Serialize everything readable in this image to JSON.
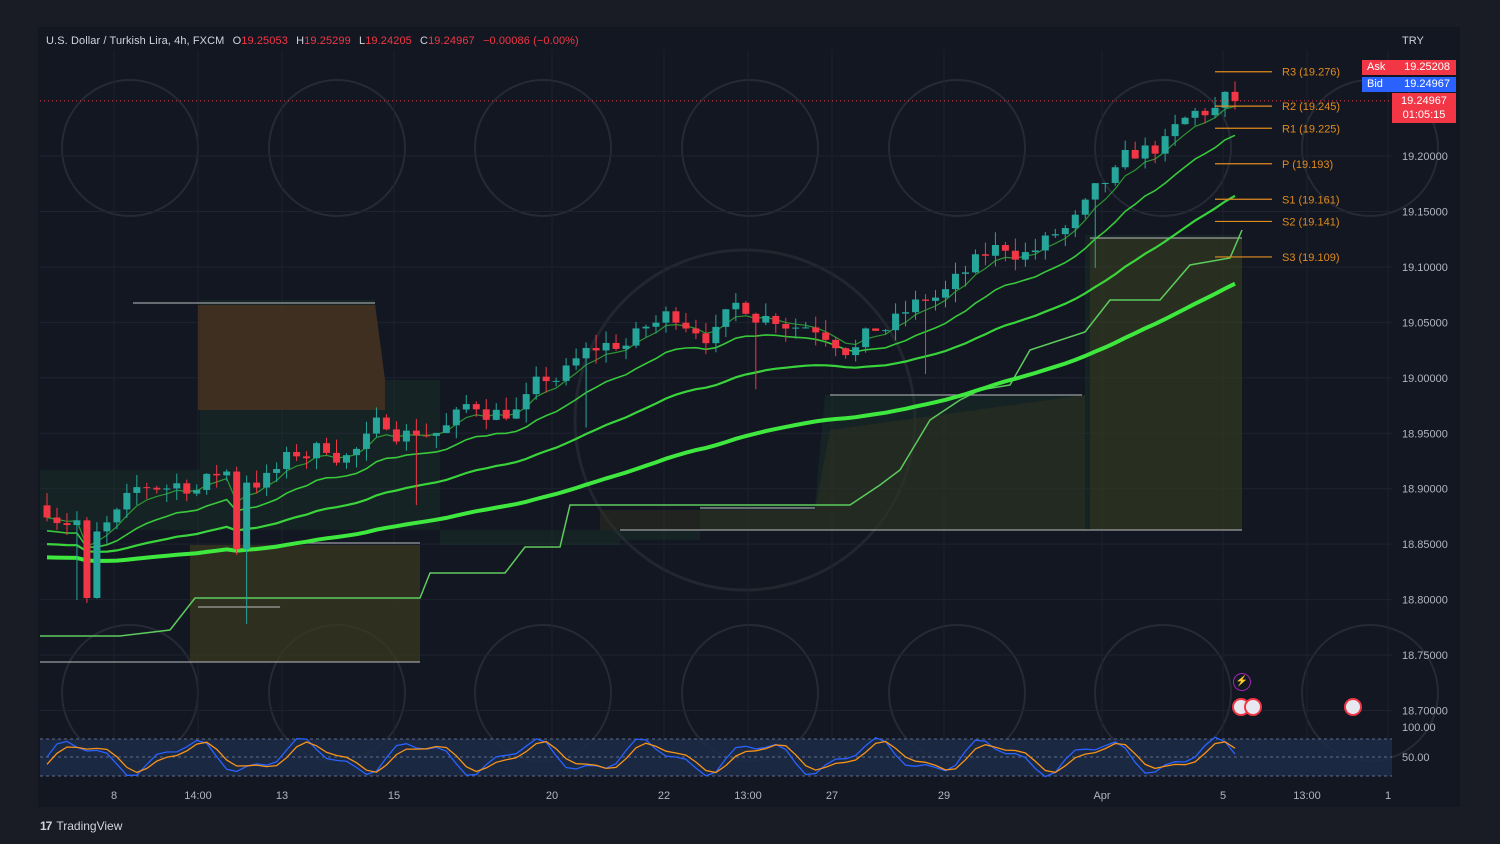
{
  "header": {
    "symbol": "U.S. Dollar / Turkish Lira, 4h, FXCM",
    "open_key": "O",
    "open": "19.25053",
    "high_key": "H",
    "high": "19.25299",
    "low_key": "L",
    "low": "19.24205",
    "close_key": "C",
    "close": "19.24967",
    "change": "−0.00086 (−0.00%)"
  },
  "currency": "TRY",
  "quotes": {
    "ask_label": "Ask",
    "ask": "19.25208",
    "bid_label": "Bid",
    "bid": "19.24967",
    "last": "19.24967",
    "countdown": "01:05:15"
  },
  "branding": {
    "logo": "TradingView"
  },
  "colors": {
    "up": "#26a69a",
    "down": "#f23645",
    "ema": "#3ee83e",
    "pivot": "#e08b1e",
    "ask_bg": "#f23645",
    "bid_bg": "#2962ff",
    "rsi_blue": "#2962ff",
    "rsi_orange": "#f7931a"
  },
  "chart_data": {
    "type": "candlestick",
    "timeframe": "4h",
    "ylim": [
      18.68,
      19.31
    ],
    "yticks": [
      "19.20000",
      "19.15000",
      "19.10000",
      "19.05000",
      "19.00000",
      "18.95000",
      "18.90000",
      "18.85000",
      "18.80000",
      "18.75000",
      "18.70000"
    ],
    "xticks": [
      "8",
      "14:00",
      "13",
      "15",
      "20",
      "22",
      "13:00",
      "27",
      "29",
      "Apr",
      "5",
      "13:00",
      "1"
    ],
    "candle_count": 120,
    "start_price": 18.885,
    "end_price": 19.24967,
    "pivots": [
      {
        "label": "R3 (19.276)",
        "value": 19.276
      },
      {
        "label": "R2 (19.245)",
        "value": 19.245
      },
      {
        "label": "R1 (19.225)",
        "value": 19.225
      },
      {
        "label": "P (19.193)",
        "value": 19.193
      },
      {
        "label": "S1 (19.161)",
        "value": 19.161
      },
      {
        "label": "S2 (19.141)",
        "value": 19.141
      },
      {
        "label": "S3 (19.109)",
        "value": 19.109
      }
    ],
    "rsi": {
      "levels": [
        "100.00",
        "50.00"
      ]
    }
  }
}
